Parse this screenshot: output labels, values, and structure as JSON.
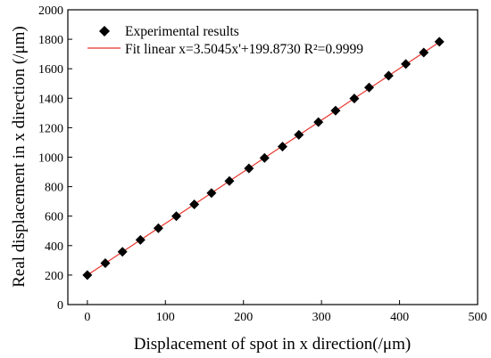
{
  "chart_data": {
    "type": "scatter",
    "xlabel": "Displacement of spot in x direction(/μm)",
    "ylabel": "Real displacement in x direction (/μm)",
    "xlim": [
      -25,
      500
    ],
    "ylim": [
      0,
      2000
    ],
    "xticks": [
      0,
      100,
      200,
      300,
      400,
      500
    ],
    "yticks": [
      0,
      200,
      400,
      600,
      800,
      1000,
      1200,
      1400,
      1600,
      1800,
      2000
    ],
    "grid": false,
    "legend_position": "top-left",
    "series": [
      {
        "name": "Experimental results",
        "kind": "scatter",
        "marker": "diamond",
        "color": "#000000",
        "x": [
          0,
          23,
          45,
          68,
          91,
          114,
          137,
          159,
          182,
          207,
          227,
          250,
          271,
          296,
          318,
          342,
          361,
          386,
          408,
          431,
          451
        ],
        "y": [
          200,
          281,
          358,
          439,
          518,
          600,
          680,
          757,
          838,
          924,
          995,
          1072,
          1152,
          1238,
          1316,
          1398,
          1473,
          1553,
          1632,
          1710,
          1783
        ]
      },
      {
        "name": "Fit linear x=3.5045x'+199.8730 R²=0.9999",
        "kind": "line",
        "color": "#e8332a",
        "slope": 3.5045,
        "intercept": 199.873,
        "x_range": [
          0,
          452
        ]
      }
    ]
  }
}
